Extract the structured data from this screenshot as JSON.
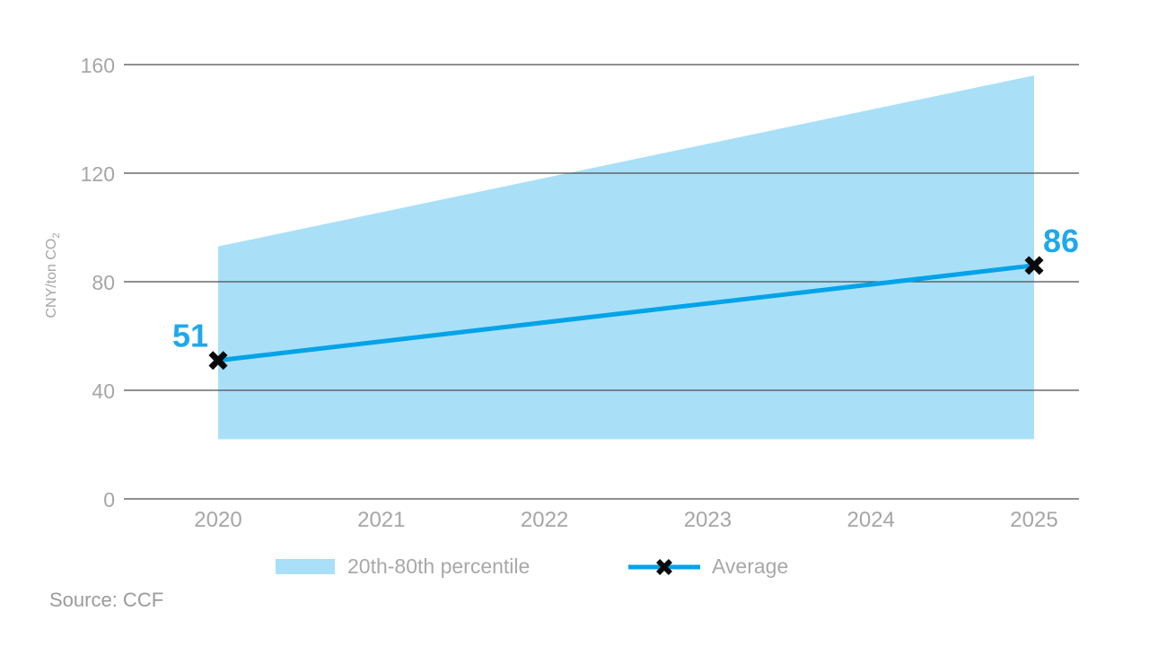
{
  "source": "Source: CCF",
  "legend": {
    "band_label": "20th-80th percentile",
    "line_label": "Average"
  },
  "y_axis": {
    "label": "CNY/ton CO",
    "label_subscript": "2",
    "ticks": [
      0,
      40,
      80,
      120,
      160
    ]
  },
  "x_axis": {
    "ticks": [
      "2020",
      "2021",
      "2022",
      "2023",
      "2024",
      "2025"
    ]
  },
  "chart_data": {
    "type": "area",
    "title": "",
    "xlabel": "",
    "ylabel": "CNY/ton CO2",
    "ylim": [
      0,
      160
    ],
    "grid": "horizontal",
    "legend_position": "bottom",
    "x": [
      2020,
      2025
    ],
    "series": [
      {
        "name": "20th-80th percentile",
        "type": "band",
        "upper": [
          93,
          156
        ],
        "lower": [
          22,
          22
        ]
      },
      {
        "name": "Average",
        "type": "line",
        "marker": "x",
        "values": [
          51,
          86
        ],
        "labels": [
          "51",
          "86"
        ]
      }
    ],
    "colors": {
      "band": "#A9E0F8",
      "line": "#00A3E8",
      "marker": "#0A0A0A",
      "value_labels": "#1FA9EC",
      "grid": "#4D4D4D",
      "tick_text": "#A6A6A6"
    }
  }
}
